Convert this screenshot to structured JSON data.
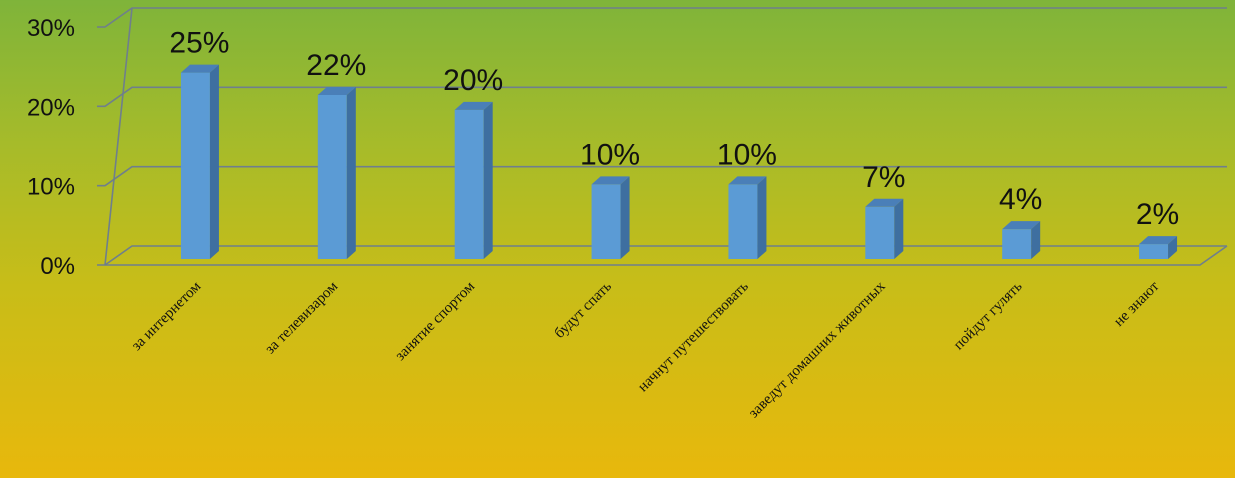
{
  "chart_data": {
    "type": "bar",
    "categories": [
      "за интернетом",
      "за телевизаром",
      "занятие спортом",
      "будут спать",
      "начнут путешествовать",
      "заведут домашних животных",
      "пойдут гулять",
      "не знают"
    ],
    "values": [
      25,
      22,
      20,
      10,
      10,
      7,
      4,
      2
    ],
    "data_labels": [
      "25%",
      "22%",
      "20%",
      "10%",
      "10%",
      "7%",
      "4%",
      "2%"
    ],
    "y_ticks": [
      "0%",
      "10%",
      "20%",
      "30%"
    ],
    "ylim": [
      0,
      30
    ],
    "grid": true,
    "legend": "none",
    "bar_color": "#5b9bd5",
    "bar_side_color": "#3e6fa0",
    "bar_top_color": "#4a7fb8",
    "grid_color": "#6f7f8c"
  }
}
